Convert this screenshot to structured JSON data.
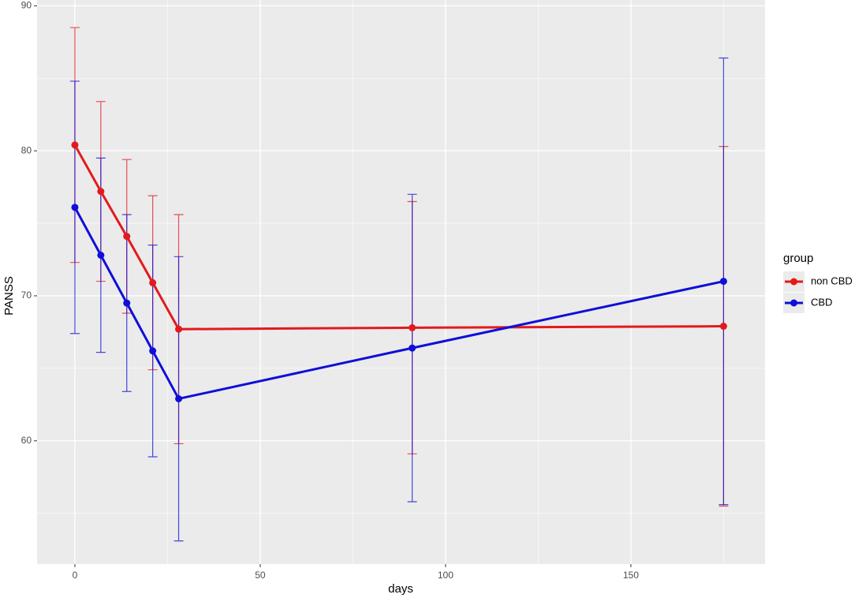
{
  "chart_data": {
    "type": "line",
    "x_label": "days",
    "y_label": "PANSS",
    "x": [
      0,
      7,
      14,
      21,
      28,
      91,
      175
    ],
    "series": [
      {
        "name": "non CBD",
        "color": "#e31a1c",
        "values": [
          80.4,
          77.2,
          74.1,
          70.9,
          67.7,
          67.8,
          67.9
        ],
        "errors": [
          8.1,
          6.2,
          5.3,
          6.0,
          7.9,
          8.7,
          12.4
        ]
      },
      {
        "name": "CBD",
        "color": "#0f0fd8",
        "values": [
          76.1,
          72.8,
          69.5,
          66.2,
          62.9,
          66.4,
          71.0
        ],
        "errors": [
          8.7,
          6.7,
          6.1,
          7.3,
          9.8,
          10.6,
          15.4
        ]
      }
    ],
    "xlim": [
      -10.2,
      186.2
    ],
    "xticks": [
      0,
      50,
      100,
      150
    ],
    "ylim": [
      51.5,
      90.4
    ],
    "yticks": [
      60,
      70,
      80,
      90
    ],
    "grid": true,
    "minor_grid": true,
    "legend_title": "group",
    "legend_position": "right"
  }
}
